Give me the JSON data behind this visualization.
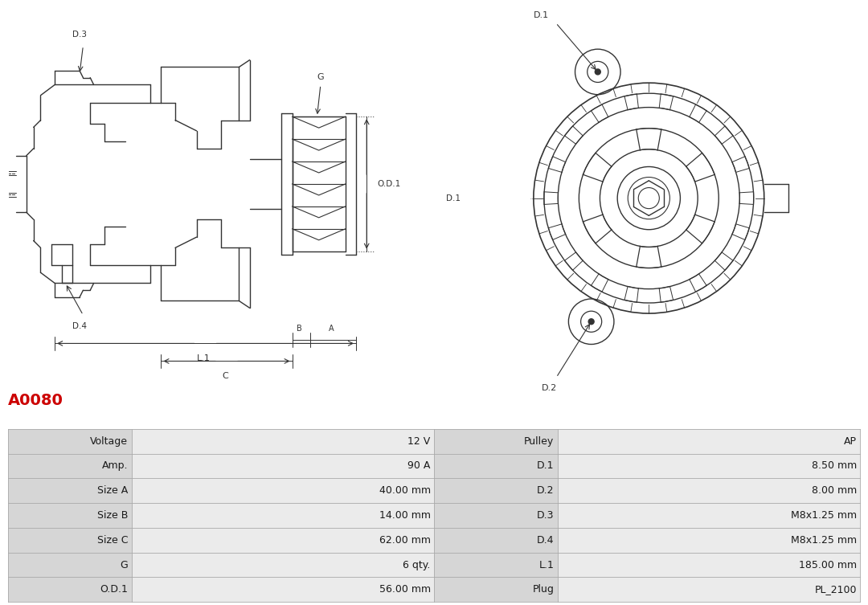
{
  "title": "A0080",
  "title_color": "#cc0000",
  "bg_color": "#ffffff",
  "table_rows": [
    [
      "Voltage",
      "12 V",
      "Pulley",
      "AP"
    ],
    [
      "Amp.",
      "90 A",
      "D.1",
      "8.50 mm"
    ],
    [
      "Size A",
      "40.00 mm",
      "D.2",
      "8.00 mm"
    ],
    [
      "Size B",
      "14.00 mm",
      "D.3",
      "M8x1.25 mm"
    ],
    [
      "Size C",
      "62.00 mm",
      "D.4",
      "M8x1.25 mm"
    ],
    [
      "G",
      "6 qty.",
      "L.1",
      "185.00 mm"
    ],
    [
      "O.D.1",
      "56.00 mm",
      "Plug",
      "PL_2100"
    ]
  ],
  "font_size_table": 9,
  "font_size_title": 14,
  "line_color": "#333333",
  "dim_color": "#333333"
}
